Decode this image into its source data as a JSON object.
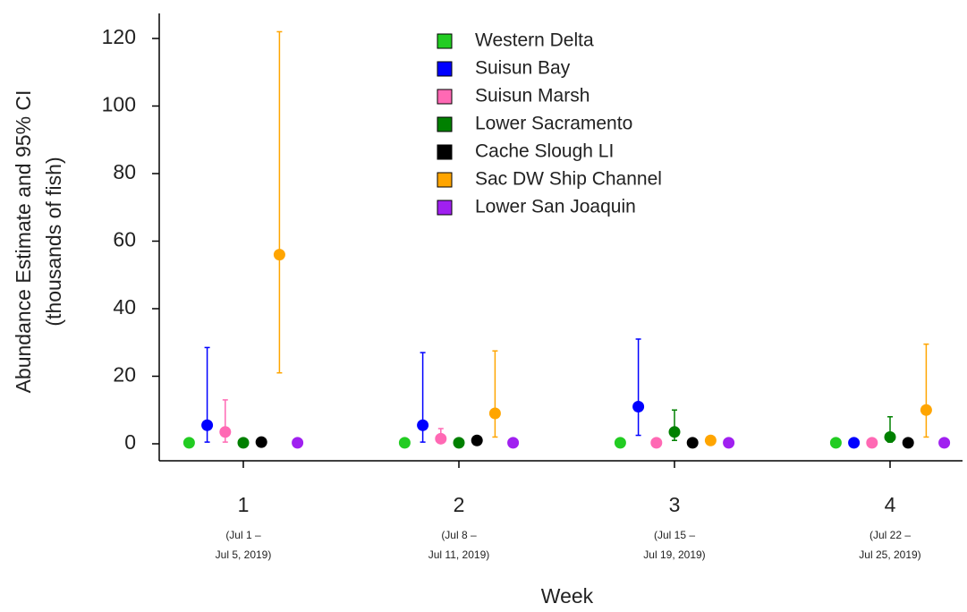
{
  "chart_data": {
    "type": "dot-errorbar",
    "xlabel": "Week",
    "ylabel": [
      "Abundance Estimate and 95% CI",
      "(thousands of fish)"
    ],
    "categories": [
      "1",
      "2",
      "3",
      "4"
    ],
    "category_dates": [
      [
        "(Jul 1 –",
        "Jul 5, 2019)"
      ],
      [
        "(Jul 8 –",
        "Jul 11, 2019)"
      ],
      [
        "(Jul 15 –",
        "Jul 19, 2019)"
      ],
      [
        "(Jul 22 –",
        "Jul 25, 2019)"
      ]
    ],
    "ylim": [
      0,
      120
    ],
    "yticks": [
      0,
      20,
      40,
      60,
      80,
      100,
      120
    ],
    "legend": "top",
    "series": [
      {
        "name": "Western Delta",
        "color": "#22cc22",
        "values": [
          0.3,
          0.3,
          0.3,
          0.3
        ],
        "ci_low": [
          null,
          null,
          null,
          null
        ],
        "ci_high": [
          null,
          null,
          null,
          null
        ]
      },
      {
        "name": "Suisun Bay",
        "color": "#0000ff",
        "values": [
          5.5,
          5.5,
          11,
          0.3
        ],
        "ci_low": [
          0.5,
          0.5,
          2.5,
          null
        ],
        "ci_high": [
          28.5,
          27,
          31,
          null
        ]
      },
      {
        "name": "Suisun Marsh",
        "color": "#ff69b4",
        "values": [
          3.5,
          1.5,
          0.3,
          0.3
        ],
        "ci_low": [
          0.5,
          0.3,
          null,
          null
        ],
        "ci_high": [
          13,
          4.5,
          null,
          null
        ]
      },
      {
        "name": "Lower Sacramento",
        "color": "#008000",
        "values": [
          0.3,
          0.3,
          3.5,
          2
        ],
        "ci_low": [
          null,
          null,
          1,
          0.5
        ],
        "ci_high": [
          null,
          null,
          10,
          8
        ]
      },
      {
        "name": "Cache Slough LI",
        "color": "#000000",
        "values": [
          0.5,
          1,
          0.3,
          0.3
        ],
        "ci_low": [
          null,
          null,
          null,
          null
        ],
        "ci_high": [
          null,
          null,
          null,
          null
        ]
      },
      {
        "name": "Sac DW Ship Channel",
        "color": "#ffa500",
        "values": [
          56,
          9,
          1,
          10
        ],
        "ci_low": [
          21,
          2,
          null,
          2
        ],
        "ci_high": [
          122,
          27.5,
          null,
          29.5
        ]
      },
      {
        "name": "Lower San Joaquin",
        "color": "#a020f0",
        "values": [
          0.3,
          0.3,
          0.3,
          0.3
        ],
        "ci_low": [
          null,
          null,
          null,
          null
        ],
        "ci_high": [
          null,
          null,
          null,
          null
        ]
      }
    ]
  }
}
